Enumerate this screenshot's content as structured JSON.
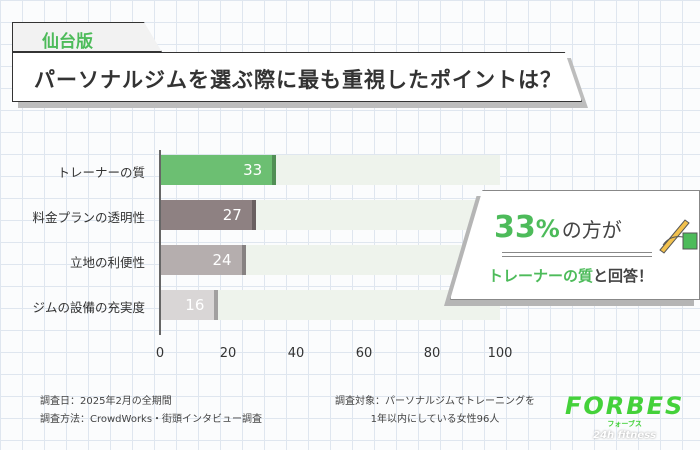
{
  "header": {
    "edition": "仙台版",
    "title": "パーソナルジムを選ぶ際に最も重視したポイントは？"
  },
  "chart_data": {
    "type": "bar",
    "orientation": "horizontal",
    "categories": [
      "トレーナーの質",
      "料金プランの透明性",
      "立地の利便性",
      "ジムの設備の充実度"
    ],
    "values": [
      33,
      27,
      24,
      16
    ],
    "colors": [
      "#6cbf72",
      "#8e8182",
      "#b5aeae",
      "#d9d6d6"
    ],
    "track_color": "#eef3ec",
    "xlim": [
      0,
      100
    ],
    "xticks": [
      0,
      20,
      40,
      60,
      80,
      100
    ],
    "grid": false
  },
  "callout": {
    "percent": "33",
    "percent_sign": "%",
    "text1": "の方が",
    "highlight": "トレーナーの質",
    "text2": "と回答！"
  },
  "footer": {
    "date": "調査日：2025年2月の全期間",
    "method": "調査方法：CrowdWorks・街頭インタビュー調査",
    "target1": "調査対象：パーソナルジムでトレーニングを",
    "target2": "1年以内にしている女性96人"
  },
  "logo": {
    "name": "FORBES",
    "kana": "フォーブス",
    "sub": "24h fitness"
  }
}
